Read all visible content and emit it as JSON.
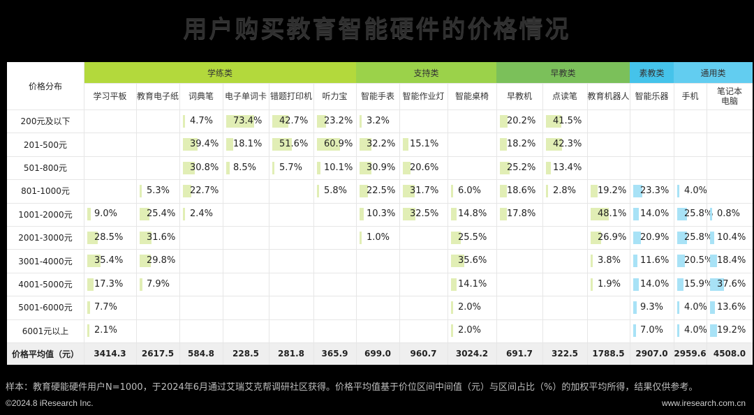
{
  "title": "用户购买教育智能硬件的价格情况",
  "corner_label": "价格分布",
  "groups": [
    {
      "name": "学练类",
      "color": "#b3d93c",
      "span": 6
    },
    {
      "name": "支持类",
      "color": "#9bd24a",
      "span": 3
    },
    {
      "name": "早教类",
      "color": "#7bc05a",
      "span": 3
    },
    {
      "name": "素教类",
      "color": "#45c3ea",
      "span": 1
    },
    {
      "name": "通用类",
      "color": "#62cdf0",
      "span": 2
    }
  ],
  "bar_colors": {
    "green": "#e1eeb5",
    "blue": "#a8e2f6"
  },
  "avg_row_label": "价格平均值（元）",
  "chart_data": {
    "type": "table",
    "title": "用户购买教育智能硬件的价格情况",
    "products": [
      "学习平板",
      "教育电子纸",
      "词典笔",
      "电子单词卡",
      "错题打印机",
      "听力宝",
      "智能手表",
      "智能作业灯",
      "智能桌椅",
      "早教机",
      "点读笔",
      "教育机器人",
      "智能乐器",
      "手机",
      "笔记本\n电脑"
    ],
    "price_ranges": [
      "200元及以下",
      "201-500元",
      "501-800元",
      "801-1000元",
      "1001-2000元",
      "2001-3000元",
      "3001-4000元",
      "4001-5000元",
      "5001-6000元",
      "6001元以上"
    ],
    "values": [
      [
        null,
        null,
        4.7,
        73.4,
        42.7,
        23.2,
        3.2,
        null,
        null,
        20.2,
        41.5,
        null,
        null,
        null,
        null
      ],
      [
        null,
        null,
        39.4,
        18.1,
        51.6,
        60.9,
        32.2,
        15.1,
        null,
        18.2,
        42.3,
        null,
        null,
        null,
        null
      ],
      [
        null,
        null,
        30.8,
        8.5,
        5.7,
        10.1,
        30.9,
        20.6,
        null,
        25.2,
        13.4,
        null,
        null,
        null,
        null
      ],
      [
        null,
        5.3,
        22.7,
        null,
        null,
        5.8,
        22.5,
        31.7,
        6.0,
        18.6,
        2.8,
        19.2,
        23.3,
        4.0,
        null
      ],
      [
        9.0,
        25.4,
        2.4,
        null,
        null,
        null,
        10.3,
        32.5,
        14.8,
        17.8,
        null,
        48.1,
        14.0,
        25.8,
        0.8
      ],
      [
        28.5,
        31.6,
        null,
        null,
        null,
        null,
        1.0,
        null,
        25.5,
        null,
        null,
        26.9,
        20.9,
        25.8,
        10.4
      ],
      [
        35.4,
        29.8,
        null,
        null,
        null,
        null,
        null,
        null,
        35.6,
        null,
        null,
        3.8,
        11.6,
        20.5,
        18.4
      ],
      [
        17.3,
        7.9,
        null,
        null,
        null,
        null,
        null,
        null,
        14.1,
        null,
        null,
        1.9,
        14.0,
        15.9,
        37.6
      ],
      [
        7.7,
        null,
        null,
        null,
        null,
        null,
        null,
        null,
        2.0,
        null,
        null,
        null,
        9.3,
        4.0,
        13.6
      ],
      [
        2.1,
        null,
        null,
        null,
        null,
        null,
        null,
        null,
        2.0,
        null,
        null,
        null,
        7.0,
        4.0,
        19.2
      ]
    ],
    "averages": [
      "3414.3",
      "2617.5",
      "584.8",
      "228.5",
      "281.8",
      "365.9",
      "699.0",
      "960.7",
      "3024.2",
      "691.7",
      "322.5",
      "1788.5",
      "2907.0",
      "2959.6",
      "4508.0"
    ],
    "unit": "%"
  },
  "footnote": "样本：教育硬能硬件用户N=1000，于2024年6月通过艾瑞艾克帮调研社区获得。价格平均值基于价位区间中间值（元）与区间占比（%）的加权平均所得，结果仅供参考。",
  "copyright": "©2024.8 iResearch Inc.",
  "website": "www.iresearch.com.cn"
}
